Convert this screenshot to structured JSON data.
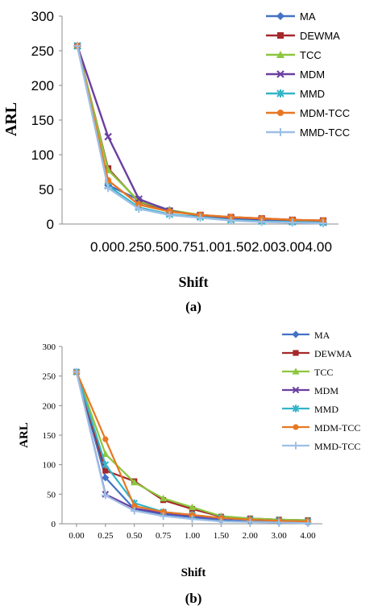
{
  "chart_data": [
    {
      "panel": "(a)",
      "type": "line",
      "title": "",
      "xlabel": "Shift",
      "ylabel": "ARL",
      "ylim": [
        0,
        300
      ],
      "yticks": [
        "0",
        "50",
        "100",
        "150",
        "200",
        "250",
        "300"
      ],
      "categories": [
        "0.00",
        "0.25",
        "0.50",
        "0.75",
        "1.00",
        "1.50",
        "2.00",
        "3.00",
        "4.00"
      ],
      "grid": false,
      "legend_position": "right",
      "series": [
        {
          "name": "MA",
          "color": "#4472C4",
          "marker": "diamond",
          "values": [
            257,
            56,
            35,
            20,
            12,
            8,
            5,
            3,
            2
          ]
        },
        {
          "name": "DEWMA",
          "color": "#A5282A",
          "marker": "square",
          "values": [
            257,
            80,
            32,
            19,
            13,
            10,
            8,
            6,
            5
          ]
        },
        {
          "name": "TCC",
          "color": "#8DC63F",
          "marker": "triangle",
          "values": [
            257,
            78,
            33,
            20,
            13,
            9,
            7,
            5,
            4
          ]
        },
        {
          "name": "MDM",
          "color": "#6A3FA0",
          "marker": "x",
          "values": [
            257,
            126,
            36,
            19,
            12,
            8,
            6,
            4,
            3
          ]
        },
        {
          "name": "MMD",
          "color": "#33B5C8",
          "marker": "x-bar",
          "values": [
            257,
            55,
            24,
            14,
            10,
            6,
            4,
            3,
            2
          ]
        },
        {
          "name": "MDM-TCC",
          "color": "#E87722",
          "marker": "circle",
          "values": [
            257,
            63,
            28,
            18,
            13,
            10,
            8,
            6,
            5
          ]
        },
        {
          "name": "MMD-TCC",
          "color": "#9DBFE6",
          "marker": "plus",
          "values": [
            257,
            52,
            22,
            13,
            9,
            5,
            3,
            2,
            1
          ]
        }
      ]
    },
    {
      "panel": "(b)",
      "type": "line",
      "title": "",
      "xlabel": "Shift",
      "ylabel": "ARL",
      "ylim": [
        0,
        300
      ],
      "yticks": [
        "0",
        "50",
        "100",
        "150",
        "200",
        "250",
        "300"
      ],
      "categories": [
        "0.00",
        "0.25",
        "0.50",
        "0.75",
        "1.00",
        "1.50",
        "2.00",
        "3.00",
        "4.00"
      ],
      "grid": false,
      "legend_position": "right",
      "series": [
        {
          "name": "MA",
          "color": "#4472C4",
          "marker": "diamond",
          "values": [
            257,
            78,
            25,
            16,
            11,
            6,
            4,
            3,
            2
          ]
        },
        {
          "name": "DEWMA",
          "color": "#A5282A",
          "marker": "square",
          "values": [
            257,
            90,
            72,
            40,
            25,
            12,
            9,
            7,
            6
          ]
        },
        {
          "name": "TCC",
          "color": "#8DC63F",
          "marker": "triangle",
          "values": [
            257,
            118,
            70,
            43,
            28,
            13,
            9,
            7,
            6
          ]
        },
        {
          "name": "MDM",
          "color": "#6A3FA0",
          "marker": "x",
          "values": [
            257,
            50,
            26,
            18,
            13,
            9,
            7,
            5,
            4
          ]
        },
        {
          "name": "MMD",
          "color": "#33B5C8",
          "marker": "x-bar",
          "values": [
            257,
            100,
            35,
            20,
            15,
            10,
            7,
            5,
            4
          ]
        },
        {
          "name": "MDM-TCC",
          "color": "#E87722",
          "marker": "circle",
          "values": [
            257,
            143,
            30,
            20,
            15,
            10,
            7,
            5,
            4
          ]
        },
        {
          "name": "MMD-TCC",
          "color": "#9DBFE6",
          "marker": "plus",
          "values": [
            257,
            48,
            22,
            13,
            8,
            4,
            3,
            2,
            1
          ]
        }
      ]
    }
  ]
}
